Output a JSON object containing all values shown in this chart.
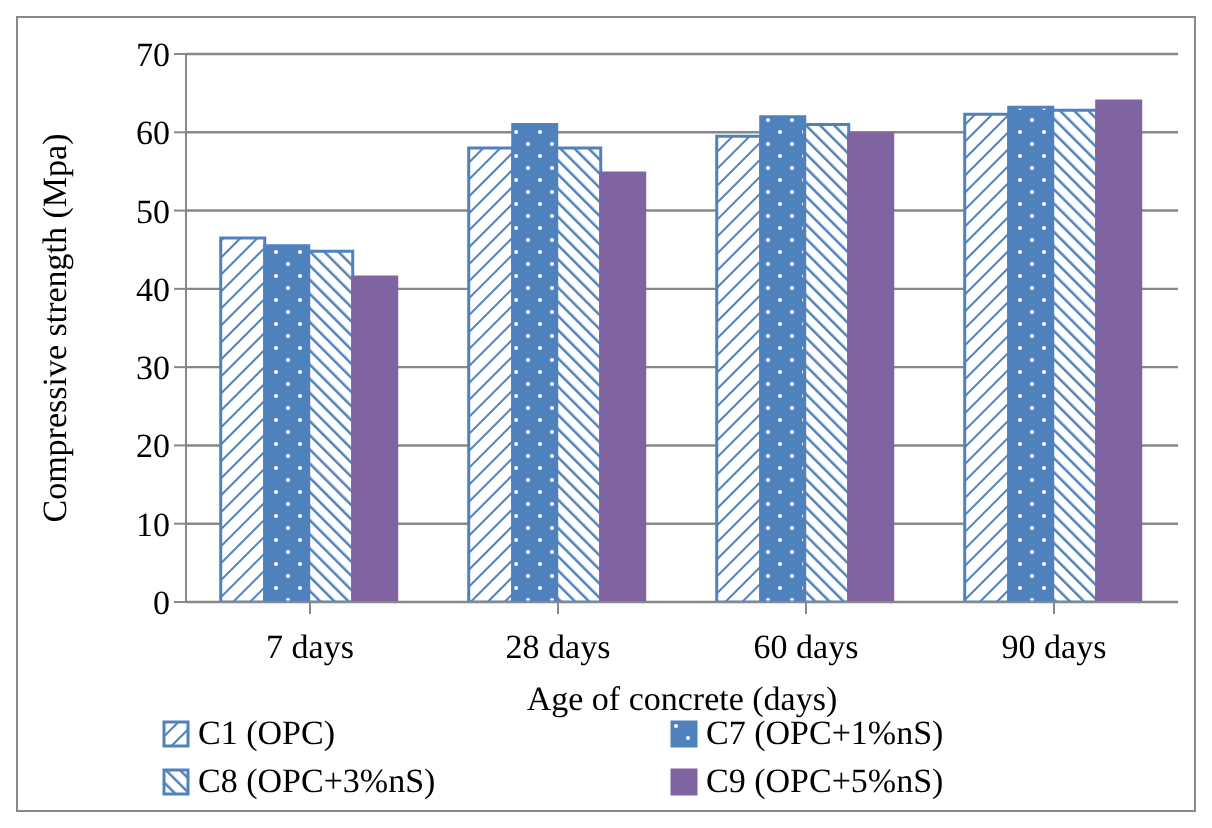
{
  "chart_data": {
    "type": "bar",
    "xlabel": "Age of concrete (days)",
    "ylabel": "Compressive strength (Mpa)",
    "categories": [
      "7 days",
      "28 days",
      "60 days",
      "90 days"
    ],
    "series": [
      {
        "name": "C1 (OPC)",
        "color": "#4f81bd",
        "values": [
          46.5,
          58,
          59.5,
          62.3
        ]
      },
      {
        "name": "C7 (OPC+1%nS)",
        "color": "#4f81bd",
        "values": [
          45.5,
          61,
          62,
          63.2
        ]
      },
      {
        "name": "C8 (OPC+3%nS)",
        "color": "#4f81bd",
        "values": [
          44.8,
          58,
          61,
          62.8
        ]
      },
      {
        "name": "C9 (OPC+5%nS)",
        "color": "#8064a2",
        "values": [
          41.5,
          54.8,
          59.8,
          64
        ]
      }
    ],
    "ylim": [
      0,
      70
    ],
    "yticks": [
      0,
      10,
      20,
      30,
      40,
      50,
      60,
      70
    ],
    "grid": "y",
    "legend": "bottom"
  }
}
